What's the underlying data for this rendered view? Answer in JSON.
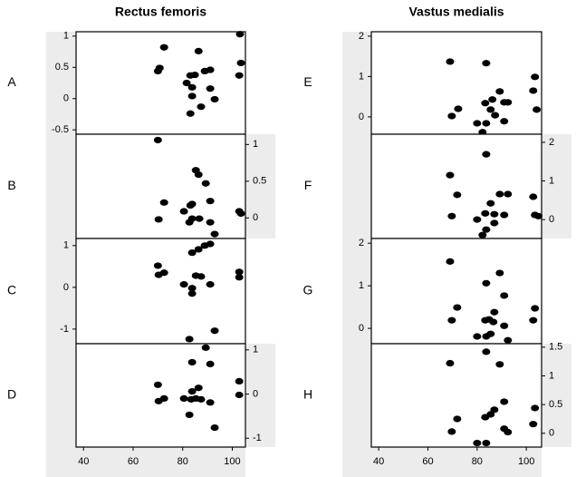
{
  "chart_data": [
    {
      "type": "scatter",
      "title": "Rectus femoris",
      "label": "A",
      "ytick_side": "left",
      "xlim": [
        37,
        105.3
      ],
      "ylim": [
        -0.57,
        1.07
      ],
      "yticks": [
        -0.5,
        0,
        0.5,
        1
      ],
      "x": [
        72.5,
        86.4,
        103.1,
        103.5,
        70.7,
        70.0,
        91.1,
        88.9,
        84.9,
        83.1,
        102.8,
        81.6,
        91.1,
        83.8,
        83.8,
        92.9,
        87.4,
        83.1
      ],
      "y": [
        0.82,
        0.76,
        1.03,
        0.57,
        0.49,
        0.44,
        0.46,
        0.44,
        0.38,
        0.37,
        0.37,
        0.25,
        0.16,
        0.18,
        0.04,
        -0.01,
        -0.13,
        -0.24
      ]
    },
    {
      "type": "scatter",
      "label": "B",
      "ytick_side": "right",
      "xlim": [
        37,
        105.3
      ],
      "ylim": [
        -0.28,
        1.14
      ],
      "yticks": [
        0,
        0.5,
        1
      ],
      "x": [
        70.0,
        85.3,
        86.4,
        89.3,
        72.5,
        83.8,
        83.1,
        91.1,
        80.5,
        102.8,
        103.5,
        70.3,
        83.8,
        82.7,
        86.7,
        91.1,
        92.9
      ],
      "y": [
        1.06,
        0.65,
        0.59,
        0.47,
        0.21,
        0.19,
        0.17,
        0.23,
        0.09,
        0.09,
        0.06,
        -0.02,
        -0.01,
        -0.06,
        -0.01,
        -0.06,
        -0.22
      ]
    },
    {
      "type": "scatter",
      "label": "C",
      "ytick_side": "left",
      "xlim": [
        37,
        105.3
      ],
      "ylim": [
        -1.35,
        1.17
      ],
      "yticks": [
        -1,
        0,
        1
      ],
      "x": [
        91.1,
        88.9,
        86.4,
        83.8,
        70.0,
        72.5,
        70.3,
        85.3,
        87.4,
        102.8,
        102.8,
        80.5,
        91.1,
        83.8,
        83.8,
        92.9,
        82.7
      ],
      "y": [
        1.04,
        1.0,
        0.91,
        0.83,
        0.52,
        0.35,
        0.3,
        0.28,
        0.26,
        0.37,
        0.24,
        0.07,
        0.07,
        -0.02,
        -0.15,
        -1.04,
        -1.24
      ]
    },
    {
      "type": "scatter",
      "label": "D",
      "ytick_side": "right",
      "xlim": [
        37,
        105.3
      ],
      "ylim": [
        -1.2,
        1.14
      ],
      "yticks": [
        -1,
        0,
        1
      ],
      "xticks": [
        40,
        60,
        80,
        100
      ],
      "x": [
        89.3,
        83.8,
        91.1,
        70.0,
        102.8,
        86.4,
        83.8,
        72.5,
        70.3,
        80.5,
        102.8,
        85.3,
        87.4,
        83.4,
        91.1,
        82.7,
        92.9
      ],
      "y": [
        1.05,
        0.72,
        0.68,
        0.21,
        0.29,
        0.14,
        0.06,
        -0.1,
        -0.16,
        -0.1,
        -0.02,
        -0.1,
        -0.12,
        -0.12,
        -0.19,
        -0.47,
        -0.76
      ]
    },
    {
      "type": "scatter",
      "title": "Vastus medialis",
      "label": "E",
      "ytick_side": "left",
      "xlim": [
        37,
        106.2
      ],
      "ylim": [
        -0.43,
        2.11
      ],
      "yticks": [
        0,
        1,
        2
      ],
      "x": [
        69.0,
        83.7,
        103.5,
        89.2,
        102.8,
        72.3,
        83.3,
        86.2,
        91.0,
        92.5,
        85.5,
        69.7,
        87.3,
        80.0,
        91.0,
        83.7,
        82.2,
        104.2
      ],
      "y": [
        1.37,
        1.33,
        0.99,
        0.63,
        0.65,
        0.2,
        0.34,
        0.43,
        0.36,
        0.36,
        0.18,
        0.02,
        0.04,
        -0.16,
        -0.11,
        -0.16,
        -0.38,
        0.18
      ]
    },
    {
      "type": "scatter",
      "label": "F",
      "ytick_side": "right",
      "xlim": [
        37,
        106.2
      ],
      "ylim": [
        -0.49,
        2.21
      ],
      "yticks": [
        0,
        1,
        2
      ],
      "x": [
        83.7,
        69.0,
        71.9,
        89.2,
        92.5,
        102.8,
        85.5,
        83.3,
        87.0,
        69.7,
        91.0,
        103.5,
        80.0,
        87.0,
        83.7,
        82.2,
        104.9
      ],
      "y": [
        1.69,
        1.15,
        0.64,
        0.66,
        0.66,
        0.59,
        0.42,
        0.16,
        0.14,
        0.09,
        0.12,
        0.12,
        0.0,
        -0.09,
        -0.26,
        -0.4,
        0.09
      ]
    },
    {
      "type": "scatter",
      "label": "G",
      "ytick_side": "left",
      "xlim": [
        37,
        106.2
      ],
      "ylim": [
        -0.36,
        2.11
      ],
      "yticks": [
        0,
        1,
        2
      ],
      "x": [
        69.0,
        89.2,
        83.7,
        91.0,
        71.9,
        103.5,
        87.0,
        83.3,
        69.7,
        102.8,
        86.6,
        84.8,
        91.0,
        80.0,
        85.5,
        83.7,
        92.5
      ],
      "y": [
        1.57,
        1.3,
        1.06,
        0.77,
        0.49,
        0.47,
        0.38,
        0.19,
        0.19,
        0.19,
        0.15,
        0.21,
        0.06,
        -0.19,
        -0.13,
        -0.19,
        -0.28
      ]
    },
    {
      "type": "scatter",
      "label": "H",
      "ytick_side": "right",
      "xlim": [
        37,
        106.2
      ],
      "ylim": [
        -0.24,
        1.56
      ],
      "yticks": [
        0,
        0.5,
        1,
        1.5
      ],
      "xticks": [
        40,
        60,
        80,
        100
      ],
      "x": [
        83.7,
        69.0,
        89.2,
        91.0,
        87.0,
        103.5,
        85.5,
        71.9,
        83.3,
        102.8,
        69.7,
        91.0,
        92.5,
        80.0,
        83.7
      ],
      "y": [
        1.42,
        1.22,
        1.2,
        0.55,
        0.41,
        0.44,
        0.33,
        0.25,
        0.28,
        0.16,
        0.03,
        0.08,
        0.02,
        -0.17,
        -0.17
      ]
    }
  ]
}
